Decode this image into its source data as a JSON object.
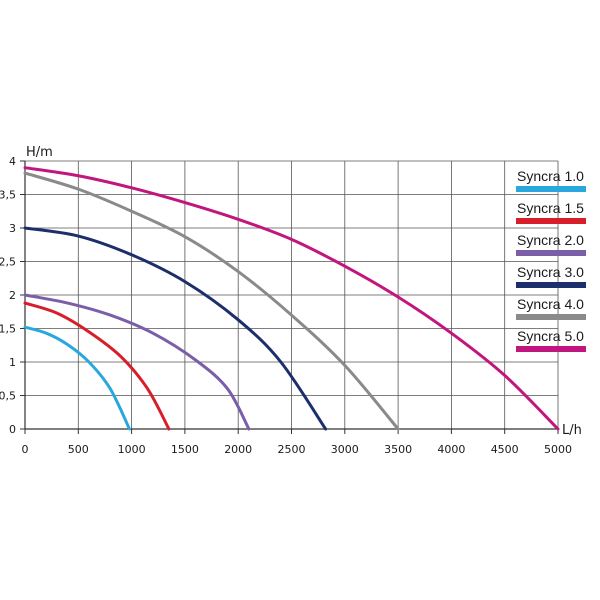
{
  "chart_data": {
    "type": "line",
    "xlabel": "L/h",
    "ylabel": "H/m",
    "xlim": [
      0,
      5000
    ],
    "ylim": [
      0,
      4
    ],
    "x_ticks": [
      "0",
      "500",
      "1000",
      "1500",
      "2000",
      "2500",
      "3000",
      "3500",
      "4000",
      "4500",
      "5000"
    ],
    "y_ticks": [
      "0",
      "0,5",
      "1",
      "1,5",
      "2",
      "2,5",
      "3",
      "3,5",
      "4"
    ],
    "grid": true,
    "legend_position": "right",
    "series": [
      {
        "name": "Syncra 1.0",
        "color": "#29a8de",
        "x": [
          0,
          200,
          400,
          600,
          800,
          980
        ],
        "y": [
          1.52,
          1.43,
          1.26,
          1.0,
          0.6,
          0.0
        ]
      },
      {
        "name": "Syncra 1.5",
        "color": "#d71f2b",
        "x": [
          0,
          300,
          600,
          900,
          1150,
          1350
        ],
        "y": [
          1.88,
          1.73,
          1.45,
          1.08,
          0.6,
          0.0
        ]
      },
      {
        "name": "Syncra 2.0",
        "color": "#7a5ea8",
        "x": [
          0,
          400,
          800,
          1200,
          1600,
          1900,
          2100
        ],
        "y": [
          2.0,
          1.88,
          1.7,
          1.43,
          1.03,
          0.6,
          0.0
        ]
      },
      {
        "name": "Syncra 3.0",
        "color": "#1c2e6b",
        "x": [
          0,
          500,
          1000,
          1500,
          2000,
          2400,
          2820
        ],
        "y": [
          3.0,
          2.88,
          2.6,
          2.2,
          1.63,
          1.0,
          0.0
        ]
      },
      {
        "name": "Syncra 4.0",
        "color": "#8a8a8a",
        "x": [
          0,
          500,
          1000,
          1500,
          2000,
          2500,
          3000,
          3500
        ],
        "y": [
          3.82,
          3.58,
          3.25,
          2.87,
          2.35,
          1.7,
          0.95,
          0.0
        ]
      },
      {
        "name": "Syncra 5.0",
        "color": "#c2167f",
        "x": [
          0,
          500,
          1000,
          1500,
          2000,
          2500,
          3000,
          3500,
          4000,
          4500,
          5000
        ],
        "y": [
          3.9,
          3.78,
          3.6,
          3.38,
          3.13,
          2.83,
          2.43,
          1.97,
          1.43,
          0.8,
          0.0
        ]
      }
    ]
  }
}
